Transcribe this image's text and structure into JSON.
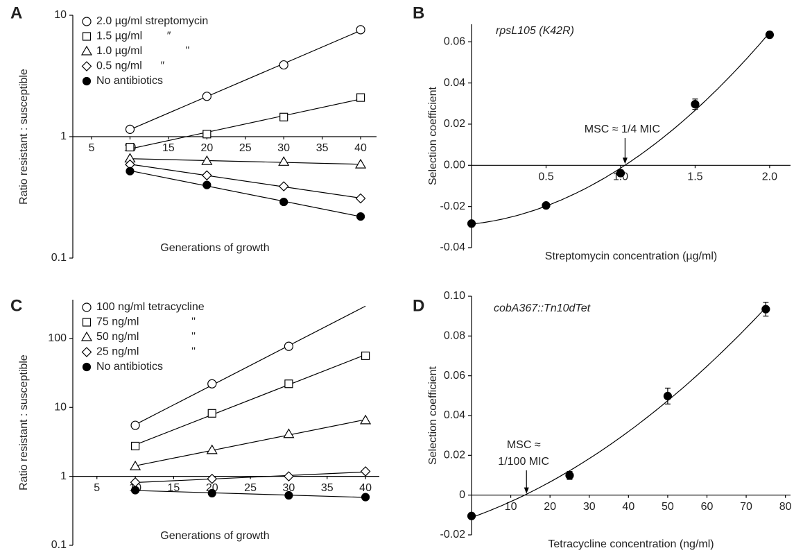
{
  "chart_data": [
    {
      "type": "line",
      "panel": "A",
      "log_y": true,
      "x_axis_at": 1,
      "x_label": "Generations of growth",
      "y_label": "Ratio resistant : susceptible",
      "x": [
        10,
        20,
        30,
        40
      ],
      "xlim": [
        2.56,
        42.07
      ],
      "ylim": [
        0.1,
        10
      ],
      "xticks": [
        5,
        10,
        15,
        20,
        25,
        30,
        35,
        40
      ],
      "yticks": [
        0.1,
        1,
        10
      ],
      "legend": "upper left",
      "series": [
        {
          "name": "2.0 µg/ml streptomycin",
          "marker": "open-circle",
          "color": "#000000",
          "values": [
            1.15,
            2.15,
            3.9,
            7.6
          ]
        },
        {
          "name": "1.5 µg/ml        ″",
          "marker": "open-square",
          "color": "#000000",
          "values": [
            0.82,
            1.05,
            1.45,
            2.1
          ]
        },
        {
          "name": "1.0 µg/ml              ''",
          "marker": "open-triangle",
          "color": "#000000",
          "values": [
            0.66,
            0.63,
            0.62,
            0.59
          ]
        },
        {
          "name": "0.5 ng/ml      ″",
          "marker": "open-diamond",
          "color": "#000000",
          "values": [
            0.59,
            0.48,
            0.39,
            0.31
          ]
        },
        {
          "name": "No antibiotics",
          "marker": "filled-circle",
          "color": "#000000",
          "values": [
            0.52,
            0.4,
            0.29,
            0.22
          ]
        }
      ]
    },
    {
      "type": "scatter",
      "panel": "B",
      "subtitle": "rpsL105 (K42R)",
      "x_label": "Streptomycin concentration (µg/ml)",
      "y_label": "Selection coefficient",
      "x": [
        0,
        0.5,
        1.0,
        1.5,
        2.0
      ],
      "xlim": [
        0,
        2.14
      ],
      "ylim": [
        -0.04,
        0.0685
      ],
      "xticks": [
        0.5,
        {
          "value": 1.0,
          "label": "1.0"
        },
        1.5,
        {
          "value": 2.0,
          "label": "2.0"
        }
      ],
      "yticks": [
        -0.04,
        -0.02,
        {
          "value": 0,
          "label": "0.00"
        },
        0.02,
        0.04,
        0.06
      ],
      "series": [
        {
          "name": null,
          "marker": "filled-circle",
          "color": "#000000",
          "values": [
            -0.0283,
            -0.0195,
            -0.0038,
            0.0297,
            0.0634
          ],
          "errors": [
            0.0015,
            0.001,
            0.0015,
            0.0025,
            0.0015
          ]
        }
      ],
      "annotation": {
        "text": [
          "MSC ≈ 1/4 MIC"
        ],
        "x": 1.03
      }
    },
    {
      "type": "line",
      "panel": "C",
      "log_y": true,
      "x_axis_at": 1,
      "x_label": "Generations of growth",
      "y_label": "Ratio resistant : susceptible",
      "x": [
        10,
        20,
        30,
        40
      ],
      "xlim": [
        1.86,
        41.8
      ],
      "ylim": [
        0.1,
        365
      ],
      "xticks": [
        5,
        10,
        15,
        20,
        25,
        30,
        35,
        40
      ],
      "yticks": [
        0.1,
        1,
        10,
        100
      ],
      "legend": "upper left",
      "series": [
        {
          "name": "100 ng/ml tetracycline",
          "marker": "open-circle",
          "color": "#000000",
          "values": [
            5.5,
            22,
            77,
            null
          ]
        },
        {
          "name": "75 ng/ml                 ''",
          "marker": "open-square",
          "color": "#000000",
          "values": [
            2.75,
            8.2,
            22,
            56
          ]
        },
        {
          "name": "50 ng/ml                 ''",
          "marker": "open-triangle",
          "color": "#000000",
          "values": [
            1.4,
            2.4,
            4.1,
            6.5
          ]
        },
        {
          "name": "25 ng/ml                 ''",
          "marker": "open-diamond",
          "color": "#000000",
          "values": [
            0.82,
            0.92,
            1.0,
            1.18
          ]
        },
        {
          "name": "No antibiotics",
          "marker": "filled-circle",
          "color": "#000000",
          "values": [
            0.63,
            0.57,
            0.53,
            0.5
          ]
        }
      ]
    },
    {
      "type": "scatter",
      "panel": "D",
      "subtitle": "cobA367::Tn10dTet",
      "x_label": "Tetracycline concentration (ng/ml)",
      "y_label": "Selection coefficient",
      "x": [
        0,
        25,
        50,
        75
      ],
      "xlim": [
        0,
        81.3
      ],
      "ylim": [
        -0.02,
        0.1
      ],
      "xticks": [
        10,
        20,
        30,
        40,
        50,
        60,
        70,
        80
      ],
      "yticks": [
        -0.02,
        0,
        0.02,
        0.04,
        0.06,
        0.08,
        {
          "value": 0.1,
          "label": "0.10"
        }
      ],
      "series": [
        {
          "name": null,
          "marker": "filled-circle",
          "color": "#000000",
          "values": [
            -0.0105,
            0.0099,
            0.0498,
            0.0935
          ],
          "errors": [
            0.0015,
            0.002,
            0.004,
            0.0035
          ]
        }
      ],
      "annotation": {
        "text": [
          "MSC ≈",
          "1/100 MIC"
        ],
        "x": 14
      }
    }
  ]
}
